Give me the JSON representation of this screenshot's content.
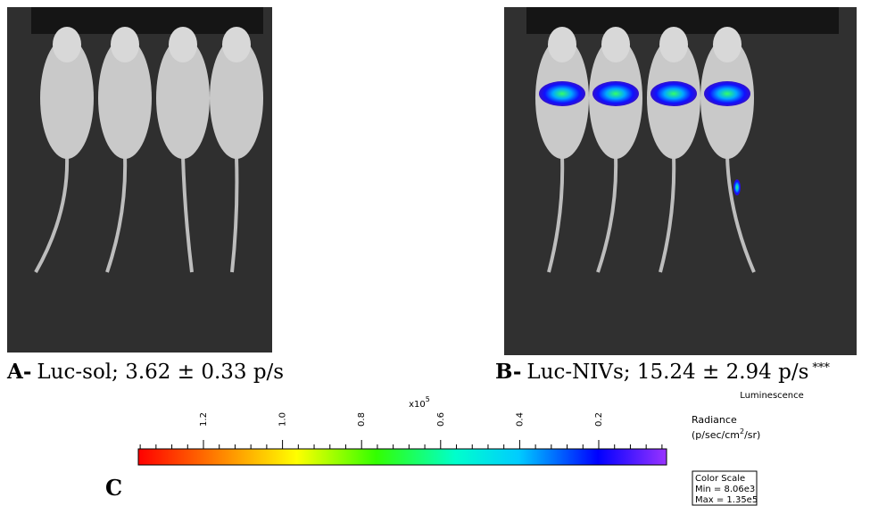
{
  "panels": [
    {
      "letter": "A-",
      "caption": "Luc-sol; 3.62 ± 0.33 p/s"
    },
    {
      "letter": "B-",
      "caption": "Luc-NIVs; 15.24 ± 2.94 p/s",
      "significance": "***"
    }
  ],
  "color_scale": {
    "multiplier": "x10",
    "exponent": "5",
    "tick_labels": [
      "1.2",
      "1.0",
      "0.8",
      "0.6",
      "0.4",
      "0.2"
    ],
    "title": "Luminescence",
    "unit_label": "Radiance",
    "unit_start": "(p/sec/cm",
    "unit_power": "2",
    "unit_end": "/sr)",
    "box_title": "Color Scale",
    "min": "Min = 8.06e3",
    "max": "Max = 1.35e5"
  },
  "panel_c": {
    "letter": "C"
  }
}
